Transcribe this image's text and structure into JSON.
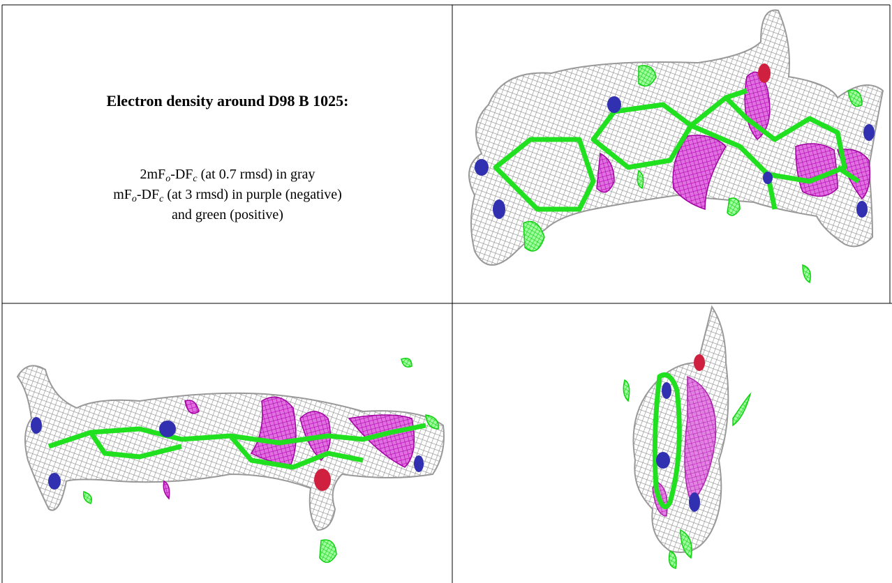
{
  "caption": {
    "title": "Electron density around D98 B 1025:",
    "lines": [
      {
        "parts": [
          "2mF",
          "o",
          "-DF",
          "c",
          " (at 0.7 rmsd) in gray"
        ]
      },
      {
        "parts": [
          "mF",
          "o",
          "-DF",
          "c",
          " (at 3 rmsd) in purple (negative)"
        ]
      },
      {
        "parts": [
          "and green (positive)"
        ]
      }
    ]
  }
}
